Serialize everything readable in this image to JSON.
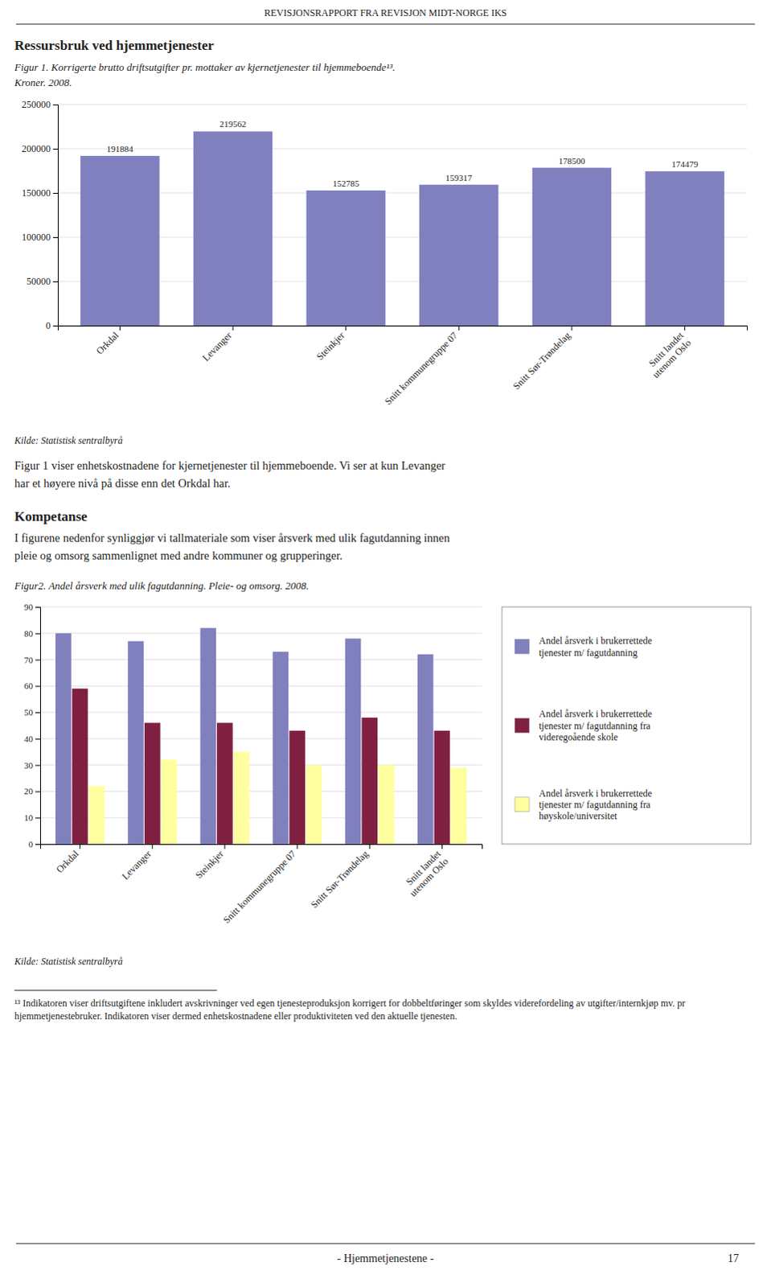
{
  "page": {
    "header": "REVISJONSRAPPORT FRA REVISJON MIDT-NORGE IKS",
    "section_title": "Ressursbruk ved hjemmetjenester",
    "text_after_figure_1": [
      "Figur 1 viser enhetskostnadene for kjernetjenester til hjemmeboende. Vi ser at kun Levanger",
      "har et høyere nivå på disse enn det Orkdal har."
    ],
    "subsection_title": "Kompetanse",
    "subsection_text": [
      "I figurene nedenfor synliggjør vi tallmateriale som viser årsverk med ulik fagutdanning innen",
      "pleie og omsorg sammenlignet med andre kommuner og grupperinger."
    ],
    "footnote": "¹³ Indikatoren viser driftsutgiftene inkludert avskrivninger ved egen tjenesteproduksjon korrigert for dobbeltføringer som skyldes viderefordeling av utgifter/internkjøp mv. pr hjemmetjenestebruker. Indikatoren viser dermed enhetskostnadene eller produktiviteten ved den aktuelle tjenesten.",
    "footer": "- Hjemmetjenestene -",
    "page_number": "17"
  },
  "chart_data": [
    {
      "type": "bar",
      "title": "Figur 1. Korrigerte brutto driftsutgifter pr. mottaker av kjernetjenester til hjemmeboende¹³.",
      "subtitle": "Kroner. 2008.",
      "categories": [
        "Orkdal",
        "Levanger",
        "Steinkjer",
        "Snitt kommunegruppe 07",
        "Snitt Sør-Trøndelag",
        "Snitt landet\nutenom Oslo"
      ],
      "values": [
        191884,
        219562,
        152785,
        159317,
        178500,
        174479
      ],
      "color": "#8080bf",
      "ylim": [
        0,
        250000
      ],
      "yticks": [
        0,
        50000,
        100000,
        150000,
        200000,
        250000
      ],
      "grid": true,
      "data_labels": true,
      "source": "Kilde: Statistisk sentralbyrå"
    },
    {
      "type": "bar",
      "title": "Figur2. Andel årsverk med ulik fagutdanning. Pleie- og omsorg. 2008.",
      "categories": [
        "Orkdal",
        "Levanger",
        "Steinkjer",
        "Snitt kommunegruppe 07",
        "Snitt Sør-Trøndelag",
        "Snitt landet\nutenom Oslo"
      ],
      "series": [
        {
          "name": "Andel årsverk i brukerrettede\ntjenester m/ fagutdanning",
          "color": "#8080bf",
          "values": [
            80,
            77,
            82,
            73,
            78,
            72
          ]
        },
        {
          "name": "Andel årsverk i brukerrettede\ntjenester m/ fagutdanning fra\nvideregoående skole",
          "color": "#802040",
          "values": [
            59,
            46,
            46,
            43,
            48,
            43
          ]
        },
        {
          "name": "Andel årsverk i brukerrettede\ntjenester m/ fagutdanning fra\nhøyskole/universitet",
          "color": "#ffffa0",
          "values": [
            22,
            32,
            35,
            30,
            30,
            29
          ]
        }
      ],
      "ylim": [
        0,
        90
      ],
      "yticks": [
        0,
        10,
        20,
        30,
        40,
        50,
        60,
        70,
        80,
        90
      ],
      "grid": true,
      "legend": "right",
      "source": "Kilde: Statistisk sentralbyrå"
    }
  ]
}
